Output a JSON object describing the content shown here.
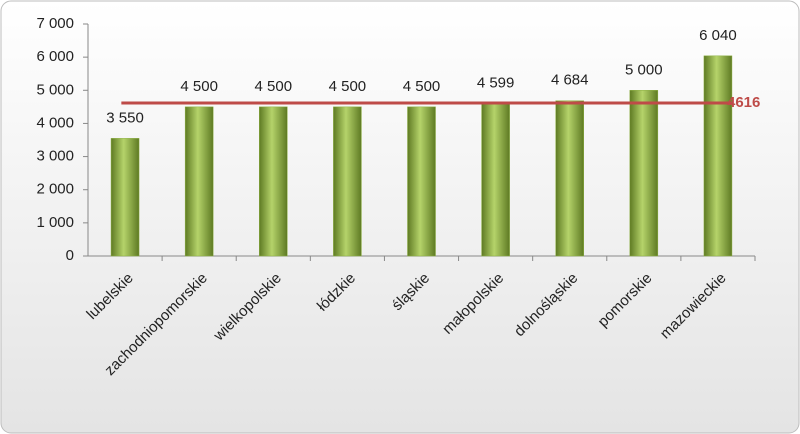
{
  "chart_data": {
    "type": "bar",
    "categories": [
      "lubelskie",
      "zachodniopomorskie",
      "wielkopolskie",
      "łódzkie",
      "śląskie",
      "małopolskie",
      "dolnośląskie",
      "pomorskie",
      "mazowieckie"
    ],
    "values": [
      3550,
      4500,
      4500,
      4500,
      4500,
      4599,
      4684,
      5000,
      6040
    ],
    "value_labels": [
      "3 550",
      "4 500",
      "4 500",
      "4 500",
      "4 500",
      "4 599",
      "4 684",
      "5 000",
      "6 040"
    ],
    "color": "#8db043",
    "ylim": [
      0,
      7000
    ],
    "yticks": [
      0,
      {
        "value": 1000,
        "label": "1 000"
      },
      {
        "value": 2000,
        "label": "2 000"
      },
      {
        "value": 3000,
        "label": "3 000"
      },
      {
        "value": 4000,
        "label": "4 000"
      },
      {
        "value": 5000,
        "label": "5 000"
      },
      {
        "value": 6000,
        "label": "6 000"
      },
      {
        "value": 7000,
        "label": "7 000"
      }
    ],
    "reference_line": {
      "value": 4616,
      "color": "#be4b48"
    }
  }
}
